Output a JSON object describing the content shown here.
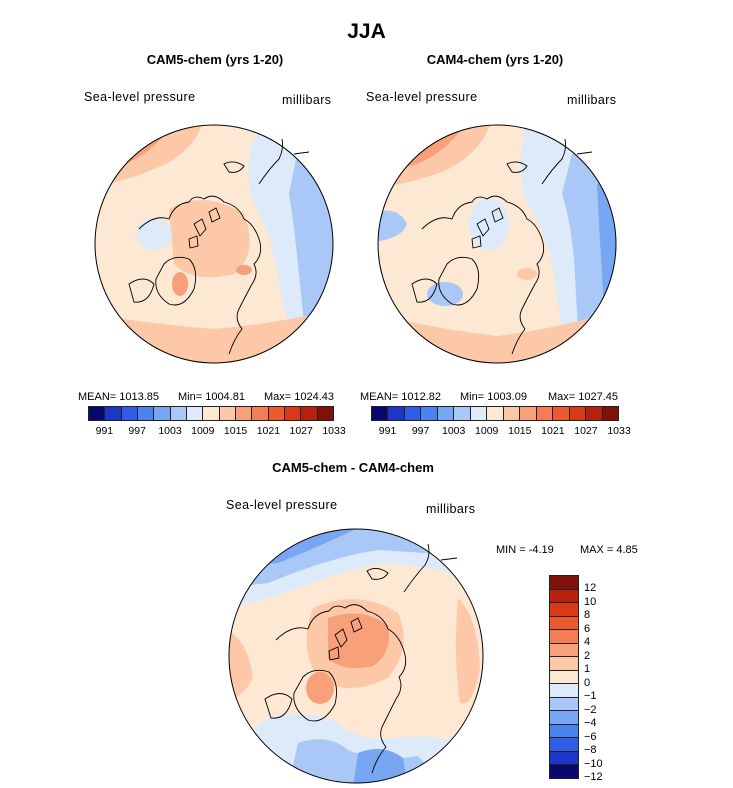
{
  "figure_title": "JJA",
  "chart_data": [
    {
      "type": "heatmap",
      "projection": "north-polar stereographic",
      "title": "CAM5-chem (yrs 1-20)",
      "variable_label": "Sea-level pressure",
      "units_label": "millibars",
      "stats": {
        "mean": "MEAN= 1013.85",
        "min": "Min= 1004.81",
        "max": "Max= 1024.43"
      },
      "levels": [
        "991",
        "997",
        "1003",
        "1009",
        "1015",
        "1021",
        "1027",
        "1033"
      ]
    },
    {
      "type": "heatmap",
      "projection": "north-polar stereographic",
      "title": "CAM4-chem (yrs 1-20)",
      "variable_label": "Sea-level pressure",
      "units_label": "millibars",
      "stats": {
        "mean": "MEAN= 1012.82",
        "min": "Min= 1003.09",
        "max": "Max= 1027.45"
      },
      "levels": [
        "991",
        "997",
        "1003",
        "1009",
        "1015",
        "1021",
        "1027",
        "1033"
      ]
    },
    {
      "type": "heatmap",
      "projection": "north-polar stereographic",
      "title": "CAM5-chem - CAM4-chem",
      "variable_label": "Sea-level pressure",
      "units_label": "millibars",
      "stats": {
        "min": "MIN =   -4.19",
        "max": "MAX =    4.85"
      },
      "levels": [
        "12",
        "10",
        "8",
        "6",
        "4",
        "2",
        "1",
        "0",
        "-1",
        "-2",
        "-4",
        "-6",
        "-8",
        "-10",
        "-12"
      ]
    }
  ],
  "colors": {
    "abs_scale": [
      "#08086e",
      "#1c36c8",
      "#2f5ce8",
      "#4a82ef",
      "#77a6f3",
      "#a9c7f7",
      "#dceaf9",
      "#fde8d4",
      "#fcc8a8",
      "#f8a07a",
      "#f47d55",
      "#ec5a2e",
      "#d93a14",
      "#b4220e",
      "#80100a"
    ],
    "diff_scale": [
      "#80100a",
      "#b4220e",
      "#d93a14",
      "#ec5a2e",
      "#f47d55",
      "#f8a07a",
      "#fcc8a8",
      "#fde8d4",
      "#dceaf9",
      "#a9c7f7",
      "#77a6f3",
      "#4a82ef",
      "#2f5ce8",
      "#1c36c8",
      "#08086e"
    ],
    "coastline": "#000000"
  }
}
